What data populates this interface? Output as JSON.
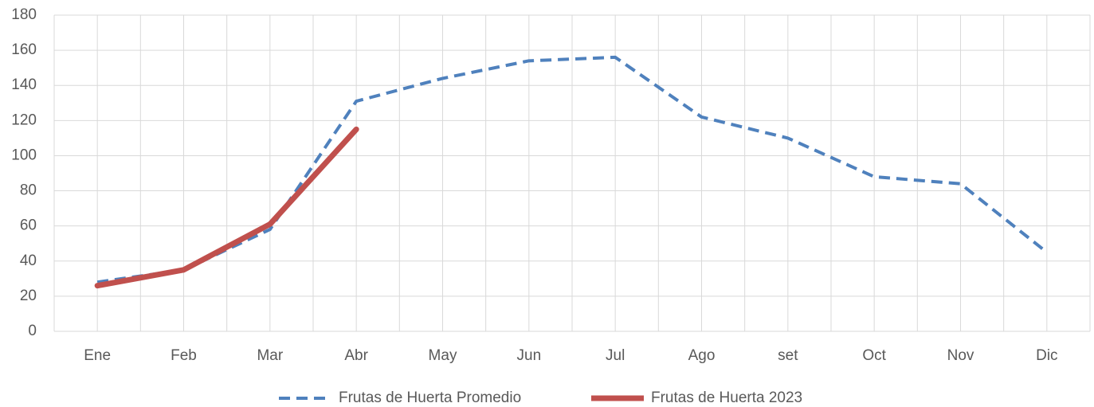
{
  "chart_data": {
    "type": "line",
    "categories": [
      "Ene",
      "Feb",
      "Mar",
      "Abr",
      "May",
      "Jun",
      "Jul",
      "Ago",
      "set",
      "Oct",
      "Nov",
      "Dic"
    ],
    "series": [
      {
        "name": "Frutas de Huerta Promedio",
        "color": "#4f81bd",
        "line_style": "dashed",
        "values": [
          28,
          35,
          58,
          131,
          144,
          154,
          156,
          122,
          110,
          88,
          84,
          45
        ]
      },
      {
        "name": "Frutas de Huerta 2023",
        "color": "#c0504d",
        "line_style": "solid",
        "values": [
          26,
          35,
          61,
          115,
          null,
          null,
          null,
          null,
          null,
          null,
          null,
          null
        ]
      }
    ],
    "ylim": [
      0,
      180
    ],
    "yticks": [
      0,
      20,
      40,
      60,
      80,
      100,
      120,
      140,
      160,
      180
    ],
    "grid": true,
    "legend": "bottom"
  }
}
